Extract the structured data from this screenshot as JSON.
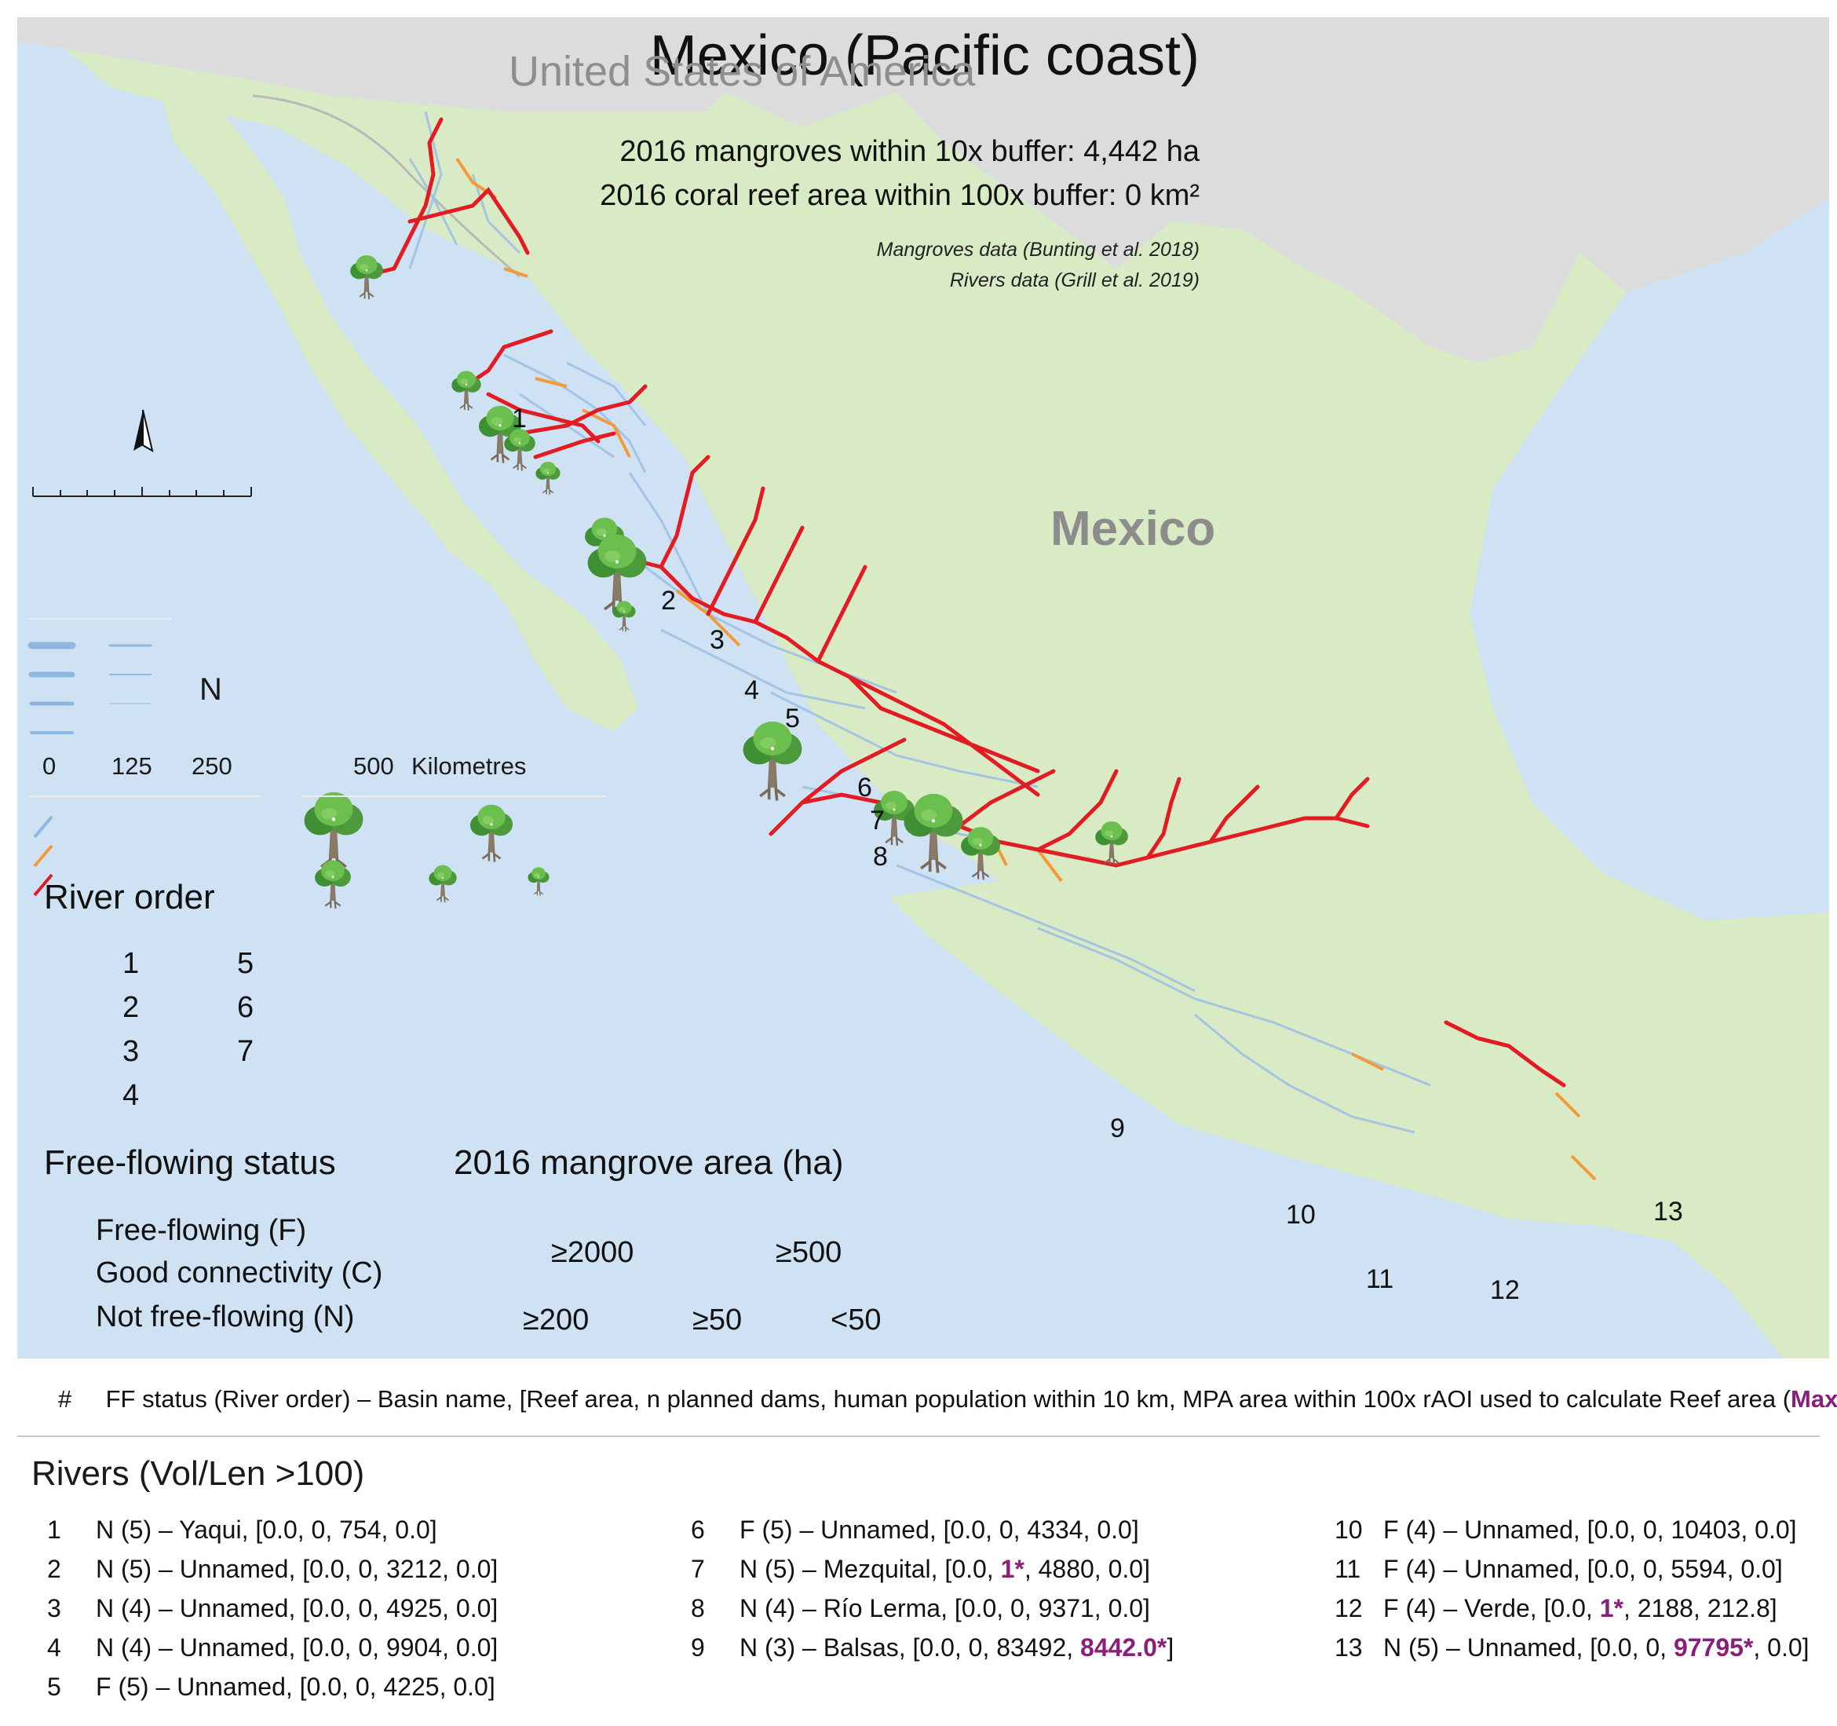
{
  "title": "Mexico (Pacific coast)",
  "stats": {
    "mangroves": "2016 mangroves within 10x buffer: 4,442 ha",
    "coral": "2016 coral reef area within 100x buffer: 0 km²"
  },
  "citations": {
    "mangroves": "Mangroves data (Bunting et al. 2018)",
    "rivers": "Rivers data (Grill et al. 2019)"
  },
  "map_labels": {
    "usa": "United States of America",
    "mexico": "Mexico"
  },
  "north_arrow": "N",
  "scale_bar": {
    "ticks": [
      "0",
      "125",
      "250",
      "500"
    ],
    "unit": "Kilometres"
  },
  "colors": {
    "sea": "#cfe2f3",
    "land": "#d8ebc5",
    "usa": "#dcdcdc",
    "free_flowing": "#8fb8e0",
    "good_connectivity": "#f39a3b",
    "not_free_flowing": "#e31b23",
    "tree_canopy": "#5aa84a",
    "trunk": "#7a6a5a",
    "highlight": "#8b1e78"
  },
  "legend": {
    "river_order_title": "River order",
    "river_orders": [
      "1",
      "2",
      "3",
      "4",
      "5",
      "6",
      "7"
    ],
    "ff_title": "Free-flowing status",
    "ff_items": [
      "Free-flowing (F)",
      "Good connectivity (C)",
      "Not free-flowing (N)"
    ],
    "mangrove_title": "2016 mangrove area (ha)",
    "mangrove_classes": [
      "≥2000",
      "≥500",
      "≥200",
      "≥50",
      "<50"
    ]
  },
  "site_numbers": [
    "1",
    "2",
    "3",
    "4",
    "5",
    "6",
    "7",
    "8",
    "9",
    "10",
    "11",
    "12",
    "13"
  ],
  "key": {
    "hash": "#",
    "text_a": "FF status (River order) – Basin name, [Reef area, n planned dams, human population within 10 km, MPA area within 100x rAOI used to calculate Reef area (",
    "text_max": "Max*",
    "text_b": ")]"
  },
  "rivers_title": "Rivers (Vol/Len >100)",
  "rivers": [
    {
      "n": "1",
      "pre": "N (5) – Yaqui, [0.0, 0, 754, 0.0]",
      "hl": "",
      "post": ""
    },
    {
      "n": "2",
      "pre": "N (5) – Unnamed, [0.0, 0, 3212, 0.0]",
      "hl": "",
      "post": ""
    },
    {
      "n": "3",
      "pre": "N (4) – Unnamed, [0.0, 0, 4925, 0.0]",
      "hl": "",
      "post": ""
    },
    {
      "n": "4",
      "pre": "N (4) – Unnamed, [0.0, 0, 9904, 0.0]",
      "hl": "",
      "post": ""
    },
    {
      "n": "5",
      "pre": "F (5) – Unnamed, [0.0, 0, 4225, 0.0]",
      "hl": "",
      "post": ""
    },
    {
      "n": "6",
      "pre": "F (5) – Unnamed, [0.0, 0, 4334, 0.0]",
      "hl": "",
      "post": ""
    },
    {
      "n": "7",
      "pre": "N (5) – Mezquital, [0.0, ",
      "hl": "1*",
      "post": ", 4880, 0.0]"
    },
    {
      "n": "8",
      "pre": "N (4) – Río Lerma, [0.0, 0, 9371, 0.0]",
      "hl": "",
      "post": ""
    },
    {
      "n": "9",
      "pre": "N (3) – Balsas, [0.0, 0, 83492, ",
      "hl": "8442.0*",
      "post": "]"
    },
    {
      "n": "10",
      "pre": "F (4) – Unnamed, [0.0, 0, 10403, 0.0]",
      "hl": "",
      "post": ""
    },
    {
      "n": "11",
      "pre": "F (4) – Unnamed, [0.0, 0, 5594, 0.0]",
      "hl": "",
      "post": ""
    },
    {
      "n": "12",
      "pre": "F (4) – Verde, [0.0, ",
      "hl": "1*",
      "post": ", 2188, 212.8]"
    },
    {
      "n": "13",
      "pre": "N (5) – Unnamed, [0.0, 0, ",
      "hl": "97795*",
      "post": ", 0.0]"
    }
  ]
}
